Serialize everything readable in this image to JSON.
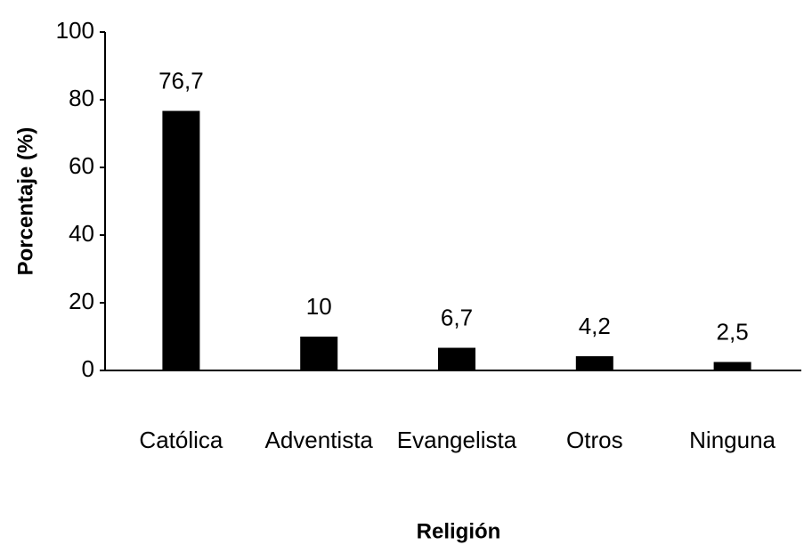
{
  "chart_data": {
    "type": "bar",
    "categories": [
      "Católica",
      "Adventista",
      "Evangelista",
      "Otros",
      "Ninguna"
    ],
    "values": [
      76.7,
      10,
      6.7,
      4.2,
      2.5
    ],
    "value_labels": [
      "76,7",
      "10",
      "6,7",
      "4,2",
      "2,5"
    ],
    "color": "#000000",
    "ylim": [
      0,
      100
    ],
    "yticks": [
      0,
      20,
      40,
      60,
      80,
      100
    ],
    "grid": false,
    "xlabel": "Religión",
    "ylabel": "Porcentaje (%)"
  }
}
